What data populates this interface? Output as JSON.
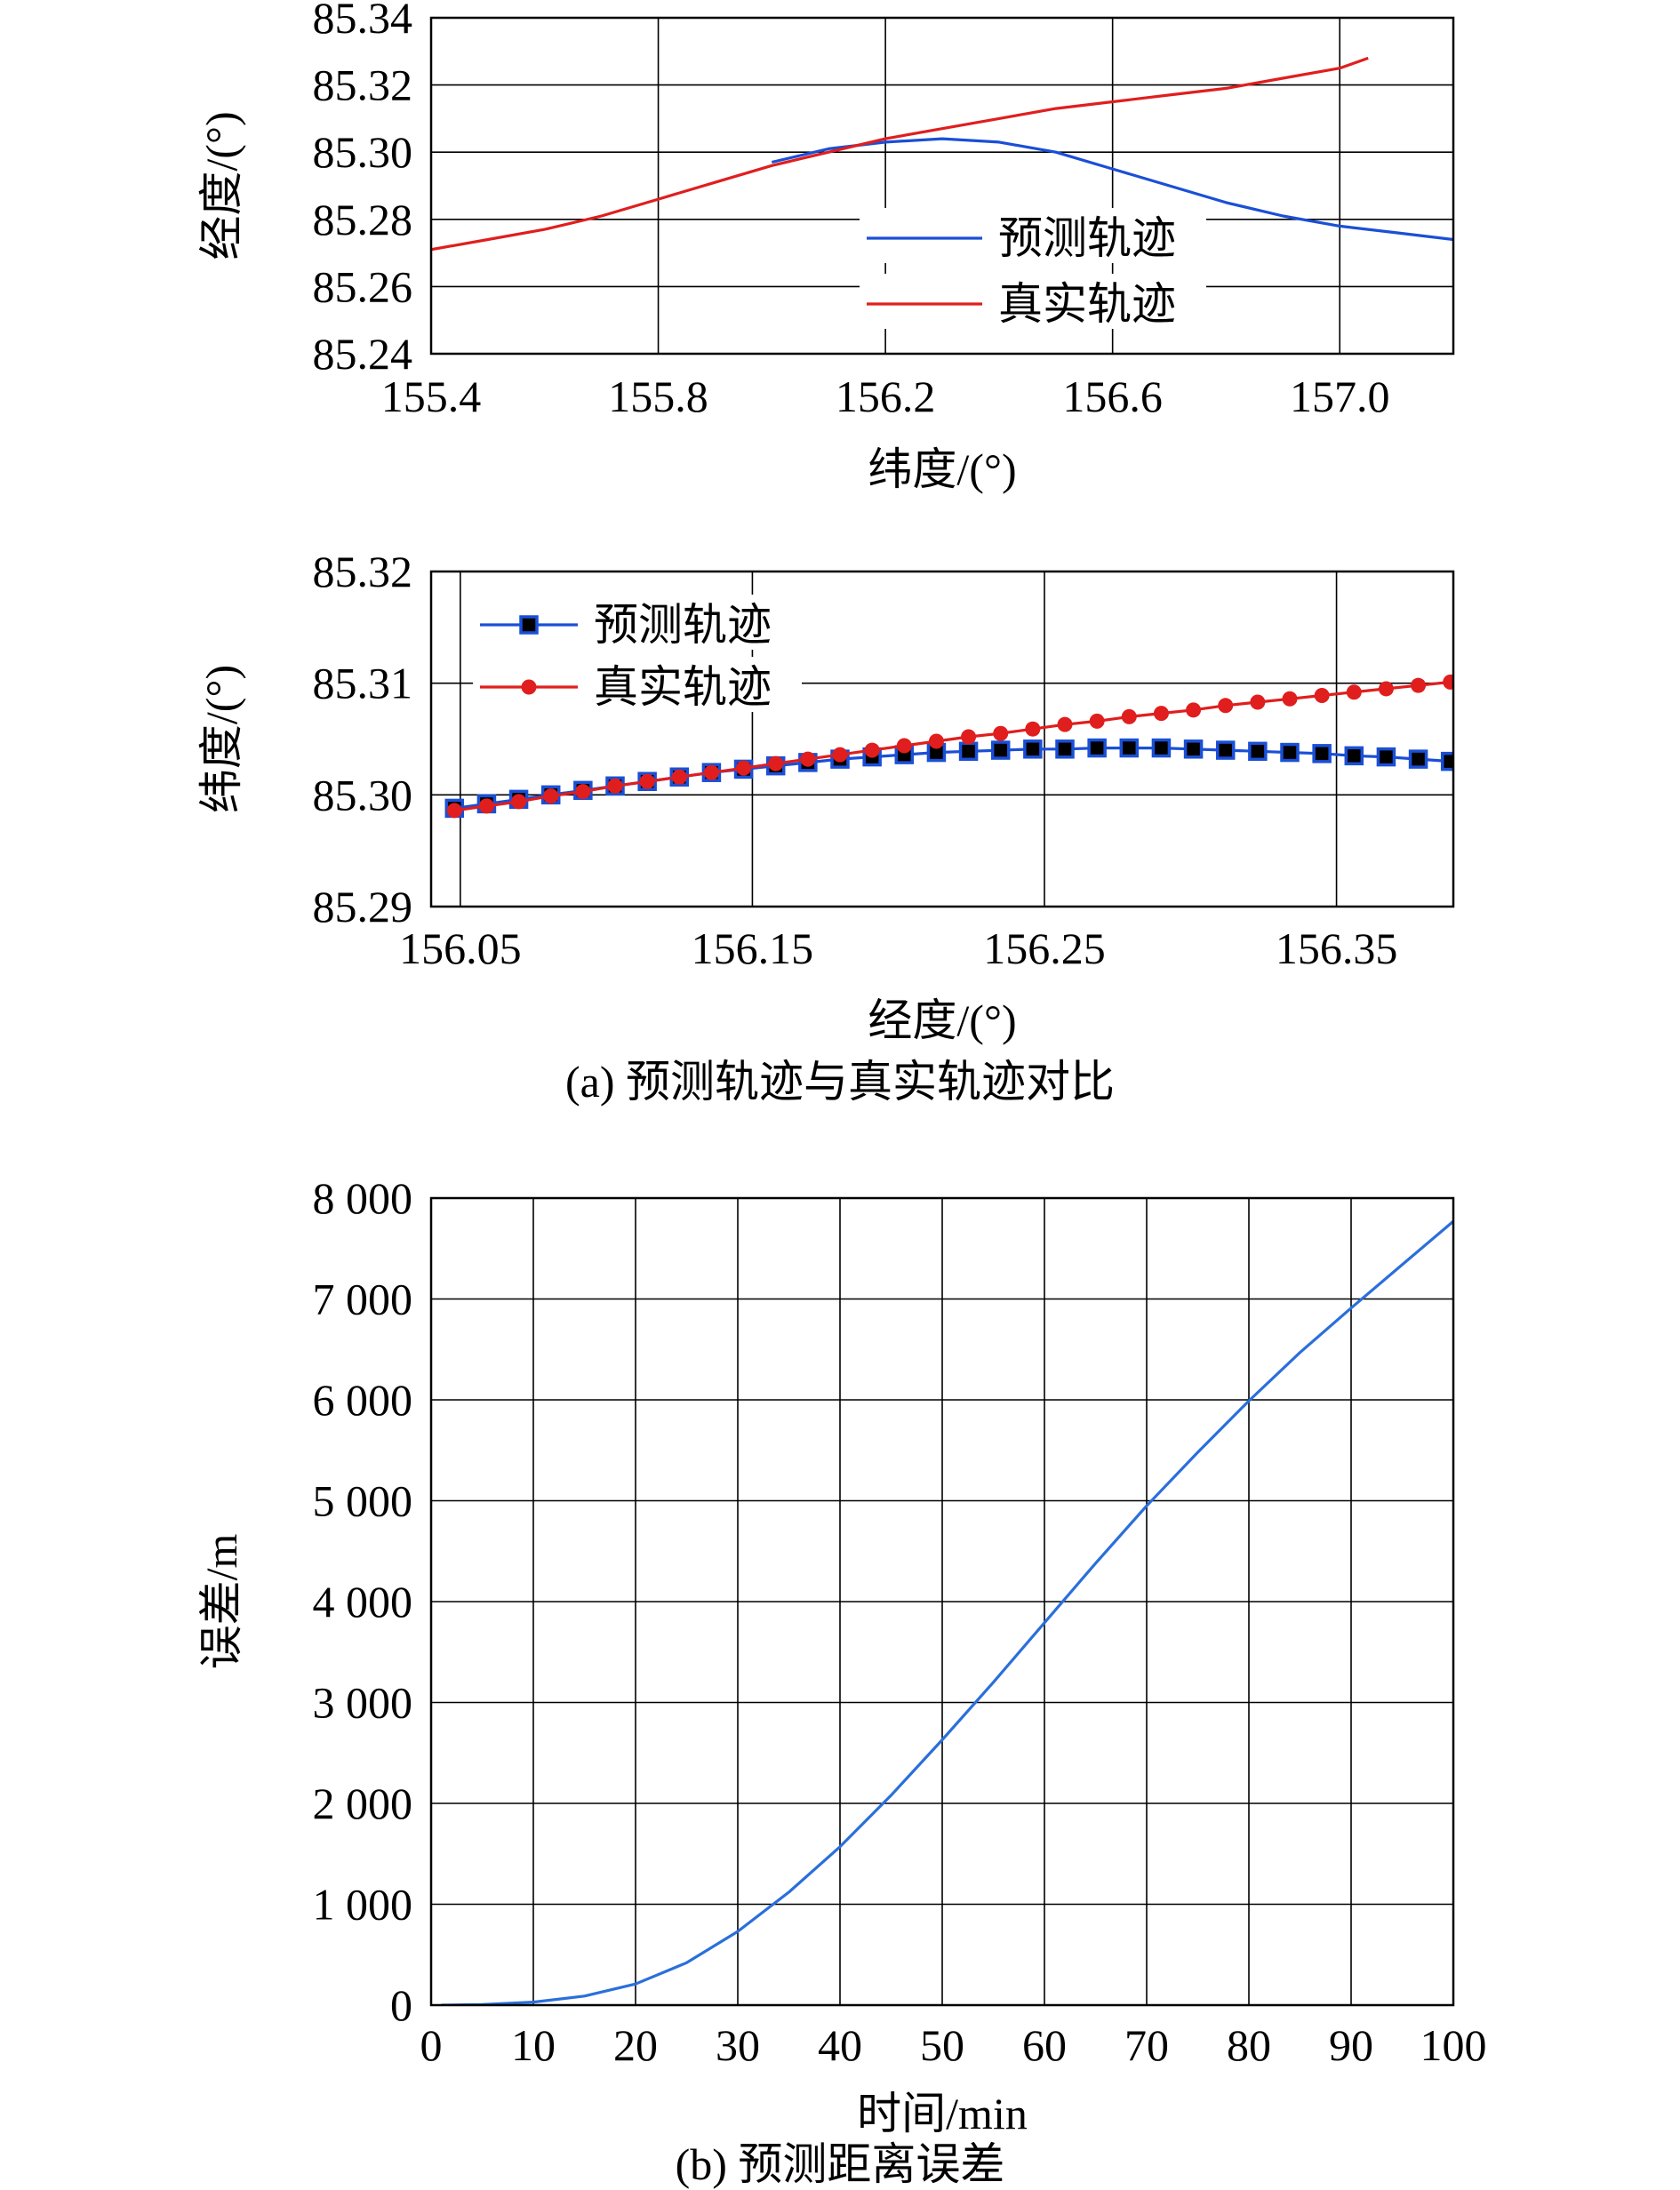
{
  "figure": {
    "caption_a": "(a) 预测轨迹与真实轨迹对比",
    "caption_b": "(b) 预测距离误差"
  },
  "chart_data": [
    {
      "type": "line",
      "xlabel": "纬度/(°)",
      "ylabel": "经度/(°)",
      "xlim": [
        155.4,
        157.2
      ],
      "ylim": [
        85.24,
        85.34
      ],
      "xticks": [
        155.4,
        155.8,
        156.2,
        156.6,
        157.0
      ],
      "xtick_labels": [
        "155.4",
        "155.8",
        "156.2",
        "156.6",
        "157.0"
      ],
      "yticks": [
        85.24,
        85.26,
        85.28,
        85.3,
        85.32,
        85.34
      ],
      "ytick_labels": [
        "85.24",
        "85.26",
        "85.28",
        "85.30",
        "85.32",
        "85.34"
      ],
      "grid": true,
      "legend_position": "right",
      "series": [
        {
          "name": "预测轨迹",
          "color": "#1a4fd6",
          "x": [
            156.0,
            156.1,
            156.2,
            156.3,
            156.4,
            156.5,
            156.6,
            156.7,
            156.8,
            156.9,
            157.0,
            157.1,
            157.2
          ],
          "y": [
            85.297,
            85.301,
            85.303,
            85.304,
            85.303,
            85.3,
            85.295,
            85.29,
            85.285,
            85.281,
            85.278,
            85.276,
            85.274
          ]
        },
        {
          "name": "真实轨迹",
          "color": "#e01e1e",
          "x": [
            155.4,
            155.5,
            155.6,
            155.7,
            155.8,
            155.9,
            156.0,
            156.1,
            156.2,
            156.3,
            156.4,
            156.5,
            156.6,
            156.7,
            156.8,
            156.9,
            157.0,
            157.05
          ],
          "y": [
            85.271,
            85.274,
            85.277,
            85.281,
            85.286,
            85.291,
            85.296,
            85.3,
            85.304,
            85.307,
            85.31,
            85.313,
            85.315,
            85.317,
            85.319,
            85.322,
            85.325,
            85.328
          ]
        }
      ]
    },
    {
      "type": "line",
      "xlabel": "经度/(°)",
      "ylabel": "纬度/(°)",
      "xlim": [
        156.04,
        156.39
      ],
      "ylim": [
        85.29,
        85.32
      ],
      "xticks": [
        156.05,
        156.15,
        156.25,
        156.35
      ],
      "xtick_labels": [
        "156.05",
        "156.15",
        "156.25",
        "156.35"
      ],
      "yticks": [
        85.29,
        85.3,
        85.31,
        85.32
      ],
      "ytick_labels": [
        "85.29",
        "85.30",
        "85.31",
        "85.32"
      ],
      "grid": true,
      "legend_position": "top-left",
      "series": [
        {
          "name": "预测轨迹",
          "color": "#1a4fd6",
          "marker": "square",
          "x": [
            156.048,
            156.059,
            156.07,
            156.081,
            156.092,
            156.103,
            156.114,
            156.125,
            156.136,
            156.147,
            156.158,
            156.169,
            156.18,
            156.191,
            156.202,
            156.213,
            156.224,
            156.235,
            156.246,
            156.257,
            156.268,
            156.279,
            156.29,
            156.301,
            156.312,
            156.323,
            156.334,
            156.345,
            156.356,
            156.367,
            156.378,
            156.389
          ],
          "y": [
            85.2988,
            85.2992,
            85.2996,
            85.3,
            85.3004,
            85.3008,
            85.3012,
            85.3016,
            85.302,
            85.3023,
            85.3026,
            85.3029,
            85.3032,
            85.3034,
            85.3036,
            85.3038,
            85.3039,
            85.304,
            85.3041,
            85.3041,
            85.3042,
            85.3042,
            85.3042,
            85.3041,
            85.304,
            85.3039,
            85.3038,
            85.3037,
            85.3035,
            85.3034,
            85.3032,
            85.303
          ]
        },
        {
          "name": "真实轨迹",
          "color": "#e01e1e",
          "marker": "circle",
          "x": [
            156.048,
            156.059,
            156.07,
            156.081,
            156.092,
            156.103,
            156.114,
            156.125,
            156.136,
            156.147,
            156.158,
            156.169,
            156.18,
            156.191,
            156.202,
            156.213,
            156.224,
            156.235,
            156.246,
            156.257,
            156.268,
            156.279,
            156.29,
            156.301,
            156.312,
            156.323,
            156.334,
            156.345,
            156.356,
            156.367,
            156.378,
            156.389
          ],
          "y": [
            85.2986,
            85.299,
            85.2994,
            85.2999,
            85.3003,
            85.3008,
            85.3012,
            85.3016,
            85.302,
            85.3024,
            85.3028,
            85.3032,
            85.3036,
            85.304,
            85.3044,
            85.3048,
            85.3052,
            85.3055,
            85.3059,
            85.3063,
            85.3066,
            85.307,
            85.3073,
            85.3076,
            85.308,
            85.3083,
            85.3086,
            85.3089,
            85.3092,
            85.3095,
            85.3098,
            85.3101
          ]
        }
      ]
    },
    {
      "type": "line",
      "xlabel": "时间/min",
      "ylabel": "误差/m",
      "xlim": [
        0,
        100
      ],
      "ylim": [
        0,
        8000
      ],
      "xticks": [
        0,
        10,
        20,
        30,
        40,
        50,
        60,
        70,
        80,
        90,
        100
      ],
      "xtick_labels": [
        "0",
        "10",
        "20",
        "30",
        "40",
        "50",
        "60",
        "70",
        "80",
        "90",
        "100"
      ],
      "yticks": [
        0,
        1000,
        2000,
        3000,
        4000,
        5000,
        6000,
        7000,
        8000
      ],
      "ytick_labels": [
        "0",
        "1 000",
        "2 000",
        "3 000",
        "4 000",
        "5 000",
        "6 000",
        "7 000",
        "8 000"
      ],
      "grid": true,
      "series": [
        {
          "color": "#2a6fdb",
          "x": [
            1,
            5,
            10,
            15,
            20,
            25,
            30,
            35,
            40,
            45,
            50,
            55,
            60,
            65,
            70,
            75,
            80,
            85,
            90,
            95,
            100
          ],
          "y": [
            0,
            5,
            30,
            90,
            210,
            420,
            730,
            1120,
            1570,
            2080,
            2630,
            3200,
            3790,
            4380,
            4950,
            5480,
            5990,
            6470,
            6910,
            7340,
            7770
          ]
        }
      ]
    }
  ]
}
